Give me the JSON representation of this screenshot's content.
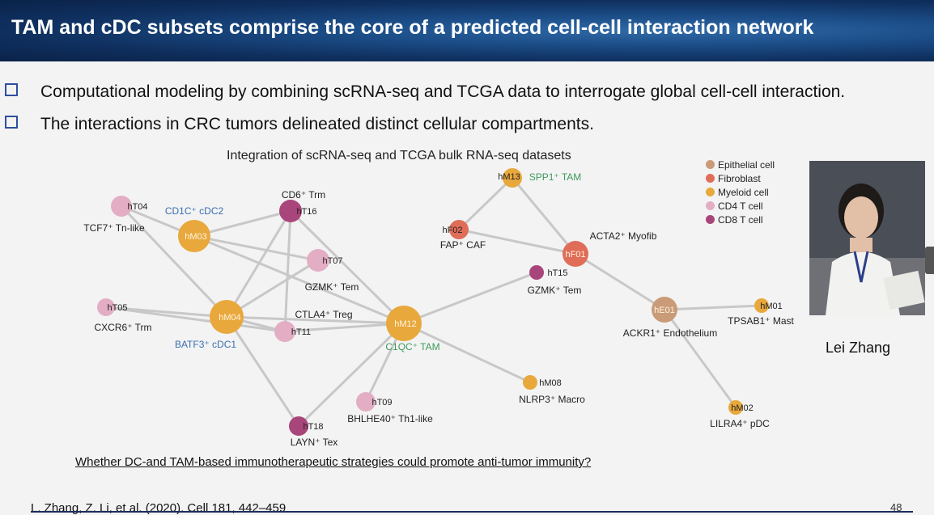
{
  "header": {
    "title": "TAM and cDC subsets comprise the core of a predicted cell-cell interaction network"
  },
  "bullets": [
    "Computational modeling by combining scRNA-seq and TCGA data to interrogate global cell-cell interaction.",
    "The interactions in CRC tumors delineated distinct cellular compartments."
  ],
  "network": {
    "title": "Integration of scRNA-seq and TCGA bulk RNA-seq datasets",
    "legend": [
      {
        "label": "Epithelial cell",
        "color": "#c99b78"
      },
      {
        "label": "Fibroblast",
        "color": "#e06d58"
      },
      {
        "label": "Myeloid cell",
        "color": "#e8a83c"
      },
      {
        "label": "CD4 T cell",
        "color": "#e3aec4"
      },
      {
        "label": "CD8 T cell",
        "color": "#a8457a"
      }
    ],
    "nodes": [
      {
        "id": "hT04",
        "type": "cd4",
        "desc": "TCF7⁺ Tn-like",
        "desc_color": "#222"
      },
      {
        "id": "hM03",
        "type": "myeloid",
        "desc": "CD1C⁺ cDC2",
        "desc_color": "#3a6fb0"
      },
      {
        "id": "hT16",
        "type": "cd8",
        "desc": "CD6⁺ Trm",
        "desc_color": "#222"
      },
      {
        "id": "hT07",
        "type": "cd4",
        "desc": "GZMK⁺ Tem",
        "desc_color": "#222"
      },
      {
        "id": "hT05",
        "type": "cd4",
        "desc": "CXCR6⁺ Trm",
        "desc_color": "#222"
      },
      {
        "id": "hM04",
        "type": "myeloid",
        "desc": "BATF3⁺ cDC1",
        "desc_color": "#3a6fb0"
      },
      {
        "id": "hT11",
        "type": "cd4",
        "desc": "CTLA4⁺ Treg",
        "desc_color": "#222"
      },
      {
        "id": "hM12",
        "type": "myeloid",
        "desc": "C1QC⁺ TAM",
        "desc_color": "#3d9a5c"
      },
      {
        "id": "hT09",
        "type": "cd4",
        "desc": "BHLHE40⁺ Th1-like",
        "desc_color": "#222"
      },
      {
        "id": "hT18",
        "type": "cd8",
        "desc": "LAYN⁺ Tex",
        "desc_color": "#222"
      },
      {
        "id": "hM08",
        "type": "myeloid",
        "desc": "NLRP3⁺ Macro",
        "desc_color": "#222"
      },
      {
        "id": "hM13",
        "type": "myeloid",
        "desc": "SPP1⁺ TAM",
        "desc_color": "#3d9a5c"
      },
      {
        "id": "hF02",
        "type": "fibro",
        "desc": "FAP⁺ CAF",
        "desc_color": "#222"
      },
      {
        "id": "hF01",
        "type": "fibro",
        "desc": "ACTA2⁺ Myofib",
        "desc_color": "#222"
      },
      {
        "id": "hT15",
        "type": "cd8",
        "desc": "GZMK⁺ Tem",
        "desc_color": "#222"
      },
      {
        "id": "hE01",
        "type": "epi",
        "desc": "ACKR1⁺ Endothelium",
        "desc_color": "#222"
      },
      {
        "id": "hM01",
        "type": "myeloid",
        "desc": "TPSAB1⁺ Mast",
        "desc_color": "#222"
      },
      {
        "id": "hM02",
        "type": "myeloid",
        "desc": "LILRA4⁺ pDC",
        "desc_color": "#222"
      }
    ],
    "edges": [
      [
        "hT04",
        "hM03"
      ],
      [
        "hT04",
        "hM04"
      ],
      [
        "hM03",
        "hT16"
      ],
      [
        "hM03",
        "hT07"
      ],
      [
        "hM03",
        "hM12"
      ],
      [
        "hT16",
        "hM04"
      ],
      [
        "hT16",
        "hM12"
      ],
      [
        "hT16",
        "hT11"
      ],
      [
        "hT07",
        "hM04"
      ],
      [
        "hT05",
        "hM04"
      ],
      [
        "hT05",
        "hT11"
      ],
      [
        "hM04",
        "hT11"
      ],
      [
        "hM04",
        "hM12"
      ],
      [
        "hM04",
        "hT18"
      ],
      [
        "hT11",
        "hM12"
      ],
      [
        "hM12",
        "hT09"
      ],
      [
        "hM12",
        "hT18"
      ],
      [
        "hM12",
        "hM08"
      ],
      [
        "hM12",
        "hT15"
      ],
      [
        "hF02",
        "hM13"
      ],
      [
        "hF02",
        "hF01"
      ],
      [
        "hM13",
        "hF01"
      ],
      [
        "hF01",
        "hE01"
      ],
      [
        "hE01",
        "hM01"
      ],
      [
        "hE01",
        "hM02"
      ]
    ]
  },
  "photo": {
    "name": "Lei Zhang"
  },
  "question": "Whether DC-and TAM-based immunotherapeutic strategies could promote anti-tumor immunity?",
  "citation": "L. Zhang, Z. Li, et al. (2020). Cell 181, 442–459",
  "page_number": "48"
}
